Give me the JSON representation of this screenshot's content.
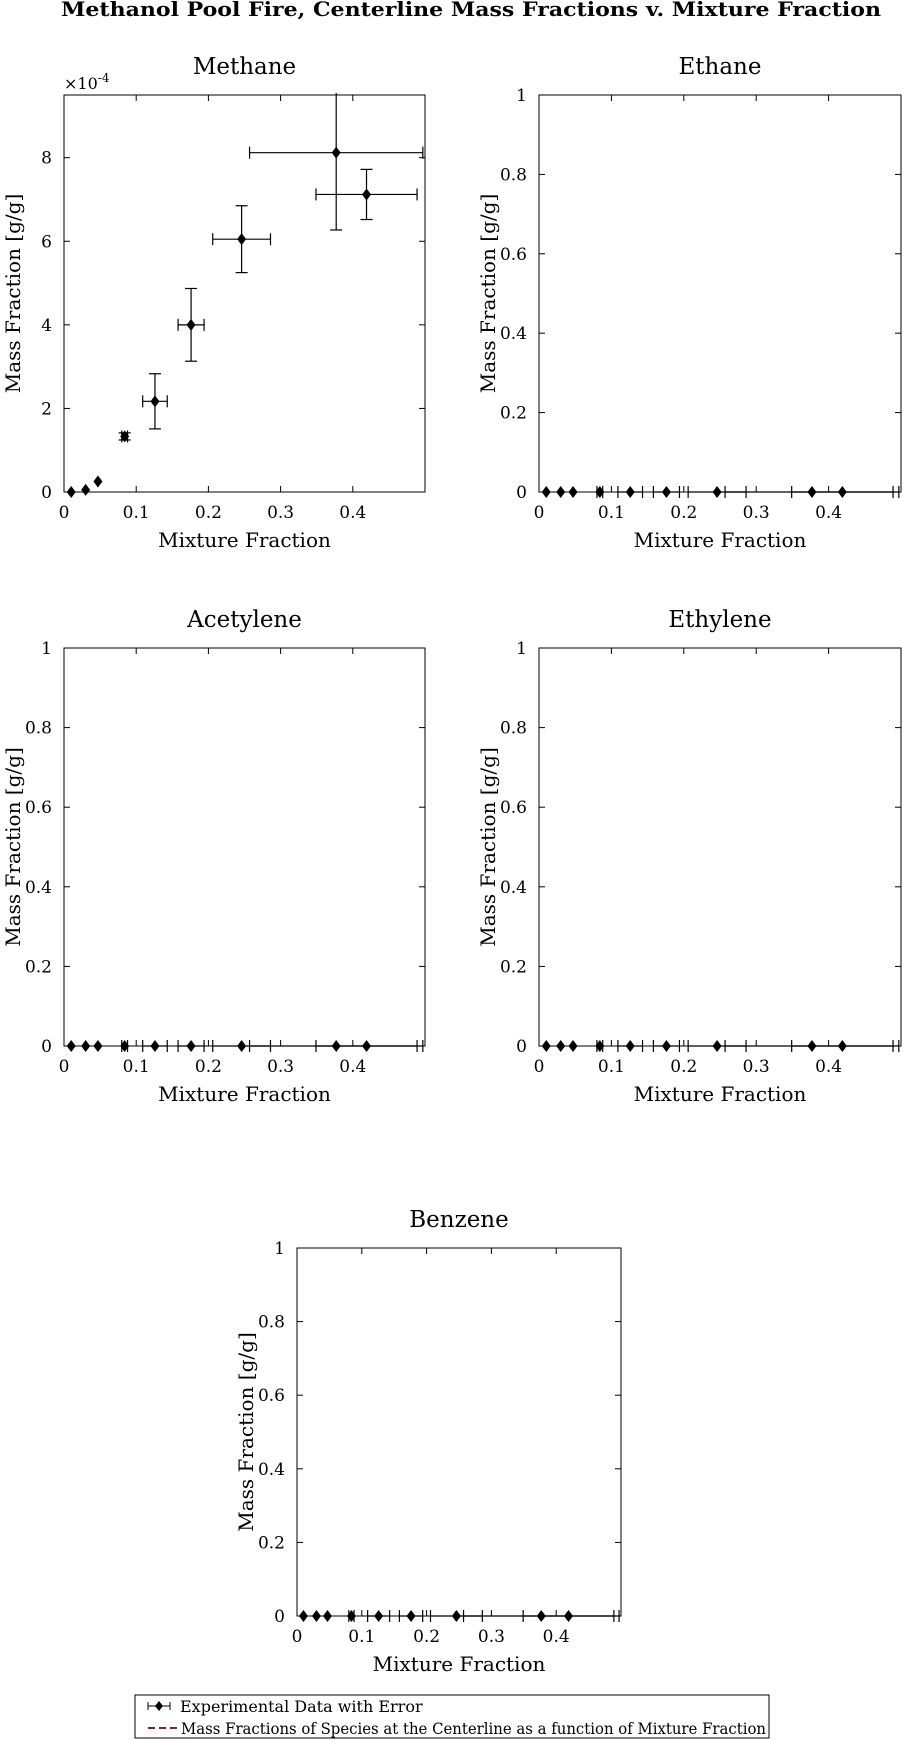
{
  "figure_title": "Methanol Pool Fire, Centerline Mass Fractions v. Mixture Fraction",
  "legend": {
    "experimental_label": "Experimental Data with Error",
    "model_label": "Mass Fractions of Species at the Centerline as a function of Mixture Fraction",
    "model_color": "#7a1f3d"
  },
  "chart_data": [
    {
      "type": "scatter",
      "title": "Methane",
      "xlabel": "Mixture Fraction",
      "ylabel": "Mass Fraction [g/g]",
      "xlim": [
        0,
        0.5
      ],
      "ylim": [
        0,
        0.00095
      ],
      "xticks": [
        0,
        0.1,
        0.2,
        0.3,
        0.4
      ],
      "xtick_labels": [
        "0",
        "0.1",
        "0.2",
        "0.3",
        "0.4"
      ],
      "yticks": [
        0,
        0.0002,
        0.0004,
        0.0006,
        0.0008
      ],
      "ytick_labels": [
        "0",
        "2",
        "4",
        "6",
        "8"
      ],
      "y_exponent_label": "×10",
      "y_exponent_power": "-4",
      "series": [
        {
          "name": "Experimental Data with Error",
          "x": [
            0.01,
            0.03,
            0.047,
            0.084,
            0.126,
            0.176,
            0.246,
            0.377,
            0.419
          ],
          "y": [
            0.0,
            5e-06,
            2.5e-05,
            0.000133,
            0.000217,
            0.0004,
            0.000605,
            0.000812,
            0.000712
          ],
          "x_err": [
            0.0,
            0.0,
            0.0,
            0.004,
            0.017,
            0.018,
            0.04,
            0.12,
            0.07
          ],
          "y_err": [
            0.0,
            0.0,
            0.0,
            8.5e-06,
            6.6e-05,
            8.7e-05,
            8e-05,
            0.000185,
            6e-05
          ]
        }
      ]
    },
    {
      "type": "scatter",
      "title": "Ethane",
      "xlabel": "Mixture Fraction",
      "ylabel": "Mass Fraction [g/g]",
      "xlim": [
        0,
        0.5
      ],
      "ylim": [
        0,
        1
      ],
      "xticks": [
        0,
        0.1,
        0.2,
        0.3,
        0.4
      ],
      "xtick_labels": [
        "0",
        "0.1",
        "0.2",
        "0.3",
        "0.4"
      ],
      "yticks": [
        0,
        0.2,
        0.4,
        0.6,
        0.8,
        1
      ],
      "ytick_labels": [
        "0",
        "0.2",
        "0.4",
        "0.6",
        "0.8",
        "1"
      ],
      "series": [
        {
          "name": "Experimental Data with Error",
          "x": [
            0.01,
            0.03,
            0.047,
            0.084,
            0.126,
            0.176,
            0.246,
            0.377,
            0.419
          ],
          "y": [
            0,
            0,
            0,
            0,
            0,
            0,
            0,
            0,
            0
          ],
          "x_err": [
            0.0,
            0.0,
            0.0,
            0.004,
            0.017,
            0.018,
            0.04,
            0.12,
            0.07
          ],
          "y_err": [
            0,
            0,
            0,
            0,
            0,
            0,
            0,
            0,
            0
          ]
        }
      ]
    },
    {
      "type": "scatter",
      "title": "Acetylene",
      "xlabel": "Mixture Fraction",
      "ylabel": "Mass Fraction [g/g]",
      "xlim": [
        0,
        0.5
      ],
      "ylim": [
        0,
        1
      ],
      "xticks": [
        0,
        0.1,
        0.2,
        0.3,
        0.4
      ],
      "xtick_labels": [
        "0",
        "0.1",
        "0.2",
        "0.3",
        "0.4"
      ],
      "yticks": [
        0,
        0.2,
        0.4,
        0.6,
        0.8,
        1
      ],
      "ytick_labels": [
        "0",
        "0.2",
        "0.4",
        "0.6",
        "0.8",
        "1"
      ],
      "series": [
        {
          "name": "Experimental Data with Error",
          "x": [
            0.01,
            0.03,
            0.047,
            0.084,
            0.126,
            0.176,
            0.246,
            0.377,
            0.419
          ],
          "y": [
            0,
            0,
            0,
            0,
            0,
            0,
            0,
            0,
            0
          ],
          "x_err": [
            0.0,
            0.0,
            0.0,
            0.004,
            0.017,
            0.018,
            0.04,
            0.12,
            0.07
          ],
          "y_err": [
            0,
            0,
            0,
            0,
            0,
            0,
            0,
            0,
            0
          ]
        }
      ]
    },
    {
      "type": "scatter",
      "title": "Ethylene",
      "xlabel": "Mixture Fraction",
      "ylabel": "Mass Fraction [g/g]",
      "xlim": [
        0,
        0.5
      ],
      "ylim": [
        0,
        1
      ],
      "xticks": [
        0,
        0.1,
        0.2,
        0.3,
        0.4
      ],
      "xtick_labels": [
        "0",
        "0.1",
        "0.2",
        "0.3",
        "0.4"
      ],
      "yticks": [
        0,
        0.2,
        0.4,
        0.6,
        0.8,
        1
      ],
      "ytick_labels": [
        "0",
        "0.2",
        "0.4",
        "0.6",
        "0.8",
        "1"
      ],
      "series": [
        {
          "name": "Experimental Data with Error",
          "x": [
            0.01,
            0.03,
            0.047,
            0.084,
            0.126,
            0.176,
            0.246,
            0.377,
            0.419
          ],
          "y": [
            0,
            0,
            0,
            0,
            0,
            0,
            0,
            0,
            0
          ],
          "x_err": [
            0.0,
            0.0,
            0.0,
            0.004,
            0.017,
            0.018,
            0.04,
            0.12,
            0.07
          ],
          "y_err": [
            0,
            0,
            0,
            0,
            0,
            0,
            0,
            0,
            0
          ]
        }
      ]
    },
    {
      "type": "scatter",
      "title": "Benzene",
      "xlabel": "Mixture Fraction",
      "ylabel": "Mass Fraction [g/g]",
      "xlim": [
        0,
        0.5
      ],
      "ylim": [
        0,
        1
      ],
      "xticks": [
        0,
        0.1,
        0.2,
        0.3,
        0.4
      ],
      "xtick_labels": [
        "0",
        "0.1",
        "0.2",
        "0.3",
        "0.4"
      ],
      "yticks": [
        0,
        0.2,
        0.4,
        0.6,
        0.8,
        1
      ],
      "ytick_labels": [
        "0",
        "0.2",
        "0.4",
        "0.6",
        "0.8",
        "1"
      ],
      "series": [
        {
          "name": "Experimental Data with Error",
          "x": [
            0.01,
            0.03,
            0.047,
            0.084,
            0.126,
            0.176,
            0.246,
            0.377,
            0.419
          ],
          "y": [
            0,
            0,
            0,
            0,
            0,
            0,
            0,
            0,
            0
          ],
          "x_err": [
            0.0,
            0.0,
            0.0,
            0.004,
            0.017,
            0.018,
            0.04,
            0.12,
            0.07
          ],
          "y_err": [
            0,
            0,
            0,
            0,
            0,
            0,
            0,
            0,
            0
          ]
        }
      ]
    }
  ]
}
